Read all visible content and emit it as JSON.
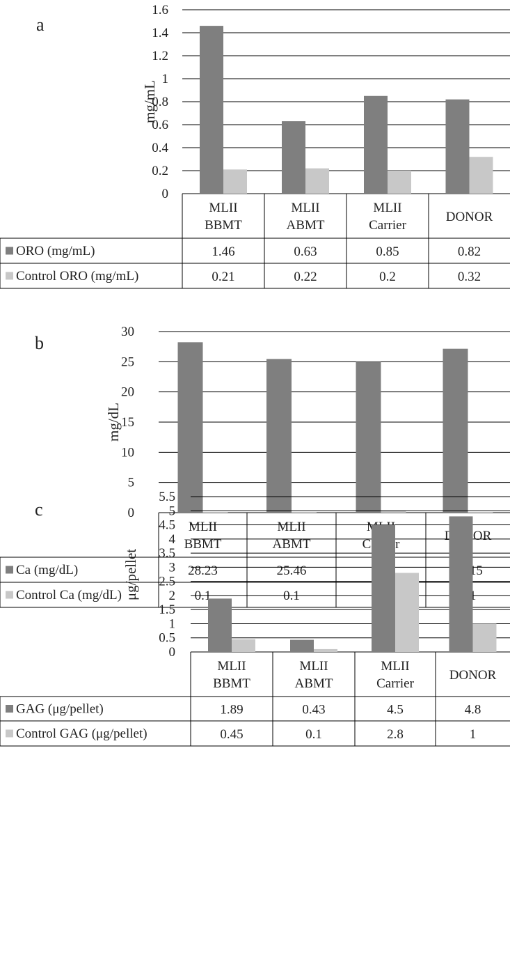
{
  "chart_data": [
    {
      "type": "bar",
      "panel_letter": "a",
      "ylabel": "mg/mL",
      "ylim": [
        0,
        1.6
      ],
      "yticks": [
        "0",
        "0.2",
        "0.4",
        "0.6",
        "0.8",
        "1",
        "1.2",
        "1.4",
        "1.6"
      ],
      "categories": [
        [
          "MLII",
          "BBMT"
        ],
        [
          "MLII",
          "ABMT"
        ],
        [
          "MLII",
          "Carrier"
        ],
        [
          "DONOR"
        ]
      ],
      "series": [
        {
          "name": "ORO (mg/mL)",
          "color": "#7f7f7f",
          "values": [
            1.46,
            0.63,
            0.85,
            0.82
          ],
          "labels": [
            "1.46",
            "0.63",
            "0.85",
            "0.82"
          ]
        },
        {
          "name": "Control ORO (mg/mL)",
          "color": "#c8c8c8",
          "values": [
            0.21,
            0.22,
            0.2,
            0.32
          ],
          "labels": [
            "0.21",
            "0.22",
            "0.2",
            "0.32"
          ]
        }
      ],
      "grid": true,
      "legend": "data-table"
    },
    {
      "type": "bar",
      "panel_letter": "b",
      "ylabel": "mg/dL",
      "ylim": [
        0,
        30
      ],
      "yticks": [
        "0",
        "5",
        "10",
        "15",
        "20",
        "25",
        "30"
      ],
      "categories": [
        [
          "MLII",
          "BBMT"
        ],
        [
          "MLII",
          "ABMT"
        ],
        [
          "MLII",
          "Carrier"
        ],
        [
          "DONOR"
        ]
      ],
      "series": [
        {
          "name": "Ca (mg/dL)",
          "color": "#7f7f7f",
          "values": [
            28.23,
            25.46,
            25,
            27.15
          ],
          "labels": [
            "28.23",
            "25.46",
            "25",
            "27.15"
          ]
        },
        {
          "name": "Control Ca (mg/dL)",
          "color": "#c8c8c8",
          "values": [
            0.1,
            0.1,
            0.3,
            0.1
          ],
          "labels": [
            "0.1",
            "0.1",
            "0.3",
            "0.1"
          ]
        }
      ],
      "grid": true,
      "legend": "data-table"
    },
    {
      "type": "bar",
      "panel_letter": "c",
      "ylabel": "μg/pellet",
      "ylim": [
        0,
        5.5
      ],
      "yticks": [
        "0",
        "0.5",
        "1",
        "1.5",
        "2",
        "2.5",
        "3",
        "3.5",
        "4",
        "4.5",
        "5",
        "5.5"
      ],
      "categories": [
        [
          "MLII",
          "BBMT"
        ],
        [
          "MLII",
          "ABMT"
        ],
        [
          "MLII",
          "Carrier"
        ],
        [
          "DONOR"
        ]
      ],
      "series": [
        {
          "name": "GAG (μg/pellet)",
          "color": "#7f7f7f",
          "values": [
            1.89,
            0.43,
            4.5,
            4.8
          ],
          "labels": [
            "1.89",
            "0.43",
            "4.5",
            "4.8"
          ]
        },
        {
          "name": "Control GAG (μg/pellet)",
          "color": "#c8c8c8",
          "values": [
            0.45,
            0.1,
            2.8,
            1
          ],
          "labels": [
            "0.45",
            "0.1",
            "2.8",
            "1"
          ]
        }
      ],
      "grid": true,
      "legend": "data-table"
    }
  ]
}
